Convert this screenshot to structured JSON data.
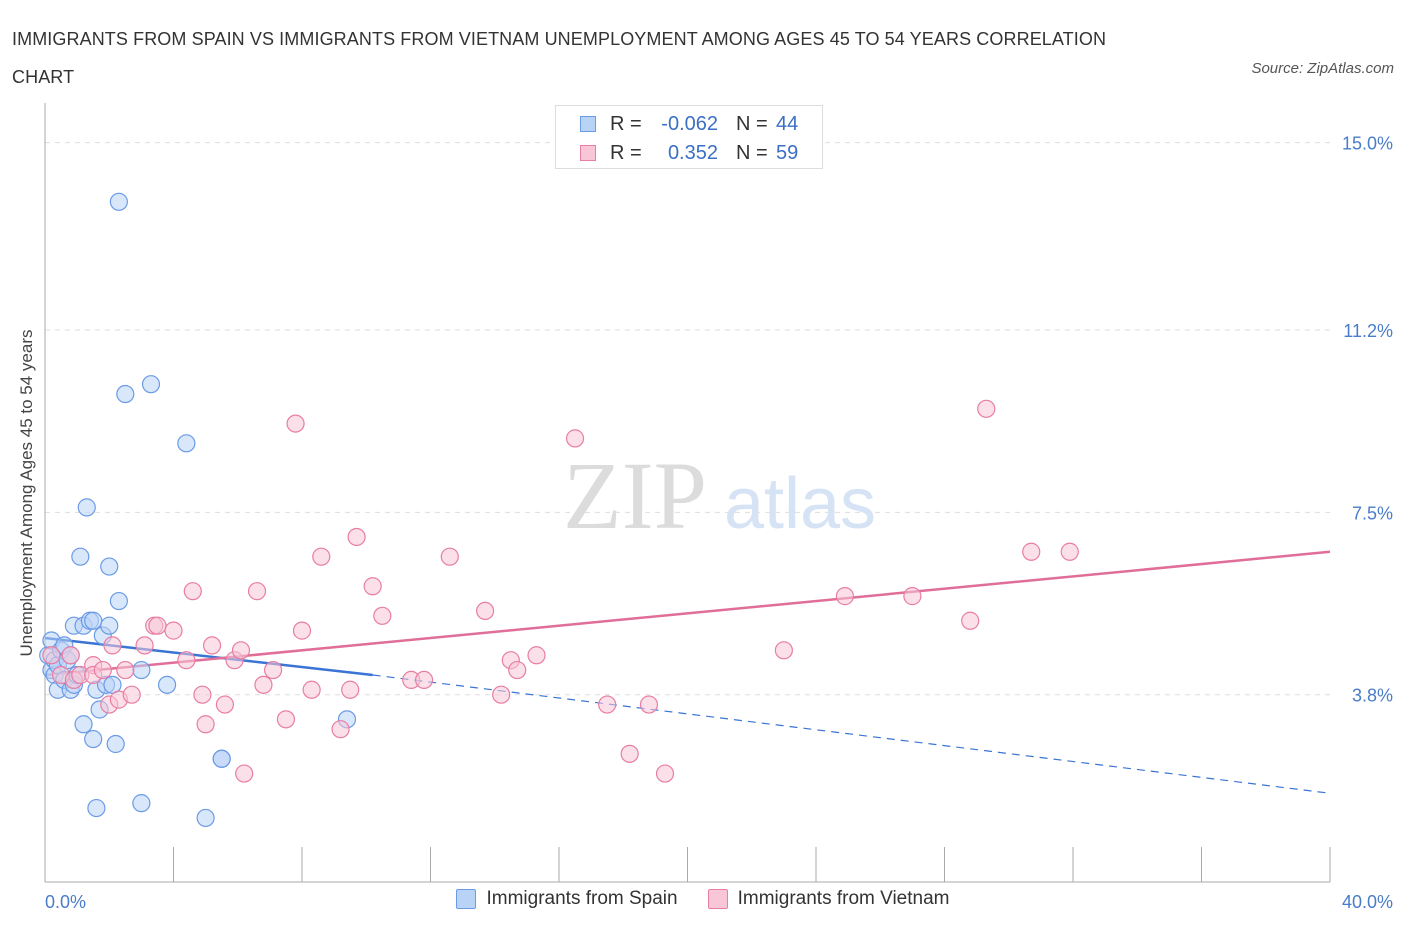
{
  "chart_data": {
    "type": "scatter",
    "title": "IMMIGRANTS FROM SPAIN VS IMMIGRANTS FROM VIETNAM UNEMPLOYMENT AMONG AGES 45 TO 54 YEARS CORRELATION CHART",
    "source": "Source: ZipAtlas.com",
    "xlabel": "",
    "ylabel": "Unemployment Among Ages 45 to 54 years",
    "xlim": [
      0,
      40
    ],
    "ylim": [
      0.0,
      15.5
    ],
    "x_tick_labels": [
      "0.0%",
      "40.0%"
    ],
    "y_ticks": [
      {
        "value": 3.8,
        "label": "3.8%"
      },
      {
        "value": 7.5,
        "label": "7.5%"
      },
      {
        "value": 11.2,
        "label": "11.2%"
      },
      {
        "value": 15.0,
        "label": "15.0%"
      }
    ],
    "watermark": {
      "part1": "ZIP",
      "part2": "atlas"
    },
    "series": [
      {
        "name": "Immigrants from Spain",
        "color": "#6b9be6",
        "fill": "#b9d3f7",
        "R": "-0.062",
        "N": "44",
        "trend": {
          "x0": 0,
          "y0": 4.95,
          "x_solid_end": 10.2,
          "y_solid_end": 4.2,
          "x1": 40,
          "y1": 1.8
        },
        "points": [
          [
            0.1,
            4.6
          ],
          [
            0.2,
            4.3
          ],
          [
            0.2,
            4.9
          ],
          [
            0.3,
            4.2
          ],
          [
            0.3,
            4.5
          ],
          [
            0.4,
            4.4
          ],
          [
            0.4,
            3.9
          ],
          [
            0.5,
            4.7
          ],
          [
            0.6,
            4.8
          ],
          [
            0.6,
            4.1
          ],
          [
            0.7,
            4.5
          ],
          [
            0.8,
            4.6
          ],
          [
            0.8,
            3.9
          ],
          [
            0.9,
            5.2
          ],
          [
            0.9,
            4.0
          ],
          [
            1.0,
            4.2
          ],
          [
            1.1,
            6.6
          ],
          [
            1.2,
            5.2
          ],
          [
            1.2,
            3.2
          ],
          [
            1.3,
            7.6
          ],
          [
            1.4,
            5.3
          ],
          [
            1.5,
            5.3
          ],
          [
            1.5,
            2.9
          ],
          [
            1.6,
            3.9
          ],
          [
            1.6,
            1.5
          ],
          [
            1.7,
            3.5
          ],
          [
            1.8,
            5.0
          ],
          [
            1.9,
            4.0
          ],
          [
            2.0,
            5.2
          ],
          [
            2.0,
            6.4
          ],
          [
            2.1,
            4.0
          ],
          [
            2.2,
            2.8
          ],
          [
            2.3,
            5.7
          ],
          [
            2.3,
            13.8
          ],
          [
            2.5,
            9.9
          ],
          [
            3.0,
            4.3
          ],
          [
            3.0,
            1.6
          ],
          [
            3.3,
            10.1
          ],
          [
            3.8,
            4.0
          ],
          [
            4.4,
            8.9
          ],
          [
            5.0,
            1.3
          ],
          [
            5.5,
            2.5
          ],
          [
            5.5,
            2.5
          ],
          [
            9.4,
            3.3
          ]
        ]
      },
      {
        "name": "Immigrants from Vietnam",
        "color": "#e87ea3",
        "fill": "#f8c6d7",
        "R": "0.352",
        "N": "59",
        "trend": {
          "x0": 0,
          "y0": 4.2,
          "x1": 40,
          "y1": 6.7
        },
        "points": [
          [
            0.2,
            4.6
          ],
          [
            0.5,
            4.2
          ],
          [
            0.8,
            4.6
          ],
          [
            0.9,
            4.1
          ],
          [
            1.1,
            4.2
          ],
          [
            1.5,
            4.4
          ],
          [
            1.5,
            4.2
          ],
          [
            1.8,
            4.3
          ],
          [
            2.1,
            4.8
          ],
          [
            2.0,
            3.6
          ],
          [
            2.3,
            3.7
          ],
          [
            2.5,
            4.3
          ],
          [
            2.7,
            3.8
          ],
          [
            3.1,
            4.8
          ],
          [
            3.4,
            5.2
          ],
          [
            3.5,
            5.2
          ],
          [
            4.0,
            5.1
          ],
          [
            4.4,
            4.5
          ],
          [
            4.6,
            5.9
          ],
          [
            4.9,
            3.8
          ],
          [
            5.0,
            3.2
          ],
          [
            5.2,
            4.8
          ],
          [
            5.6,
            3.6
          ],
          [
            5.9,
            4.5
          ],
          [
            6.1,
            4.7
          ],
          [
            6.2,
            2.2
          ],
          [
            6.6,
            5.9
          ],
          [
            6.8,
            4.0
          ],
          [
            7.1,
            4.3
          ],
          [
            7.5,
            3.3
          ],
          [
            7.8,
            9.3
          ],
          [
            8.0,
            5.1
          ],
          [
            8.3,
            3.9
          ],
          [
            8.6,
            6.6
          ],
          [
            9.2,
            3.1
          ],
          [
            9.5,
            3.9
          ],
          [
            9.7,
            7.0
          ],
          [
            10.2,
            6.0
          ],
          [
            10.5,
            5.4
          ],
          [
            11.4,
            4.1
          ],
          [
            11.8,
            4.1
          ],
          [
            12.6,
            6.6
          ],
          [
            13.7,
            5.5
          ],
          [
            14.2,
            3.8
          ],
          [
            14.5,
            4.5
          ],
          [
            14.7,
            4.3
          ],
          [
            15.3,
            4.6
          ],
          [
            16.5,
            9.0
          ],
          [
            17.5,
            3.6
          ],
          [
            18.2,
            2.6
          ],
          [
            18.8,
            3.6
          ],
          [
            19.3,
            2.2
          ],
          [
            23.0,
            4.7
          ],
          [
            24.9,
            5.8
          ],
          [
            27.0,
            5.8
          ],
          [
            28.8,
            5.3
          ],
          [
            29.3,
            9.6
          ],
          [
            30.7,
            6.7
          ],
          [
            31.9,
            6.7
          ]
        ]
      }
    ]
  }
}
